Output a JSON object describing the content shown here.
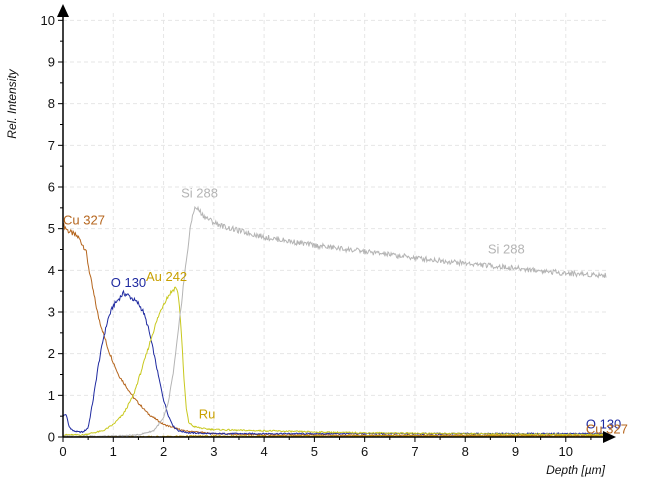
{
  "chart_data": {
    "type": "line",
    "xlabel": "Depth [µm]",
    "ylabel": "Rel. Intensity",
    "xlim": [
      0,
      10.8
    ],
    "ylim": [
      0,
      10.2
    ],
    "xticks": [
      0,
      1,
      2,
      3,
      4,
      5,
      6,
      7,
      8,
      9,
      10
    ],
    "yticks": [
      0,
      1,
      2,
      3,
      4,
      5,
      6,
      7,
      8,
      9,
      10
    ],
    "grid": true,
    "series": [
      {
        "name": "Cu 327",
        "color": "#b5651d",
        "x": [
          0,
          0.1,
          0.3,
          0.45,
          0.55,
          0.7,
          0.9,
          1.1,
          1.4,
          1.7,
          2.0,
          2.4,
          3.0,
          4.0,
          6.0,
          8.0,
          10.0,
          10.8
        ],
        "y": [
          5.1,
          4.95,
          4.8,
          4.5,
          3.8,
          2.9,
          2.1,
          1.5,
          0.95,
          0.55,
          0.3,
          0.15,
          0.08,
          0.05,
          0.04,
          0.04,
          0.04,
          0.04
        ]
      },
      {
        "name": "O 130",
        "color": "#1f2aa0",
        "x": [
          0,
          0.06,
          0.12,
          0.2,
          0.3,
          0.4,
          0.5,
          0.6,
          0.7,
          0.8,
          0.9,
          1.0,
          1.1,
          1.2,
          1.3,
          1.4,
          1.5,
          1.6,
          1.7,
          1.8,
          1.9,
          2.0,
          2.1,
          2.2,
          2.3,
          2.5,
          3.0,
          4.0,
          6.0,
          8.0,
          10.0,
          10.8
        ],
        "y": [
          0.5,
          0.55,
          0.25,
          0.15,
          0.12,
          0.12,
          0.22,
          0.9,
          1.7,
          2.35,
          2.85,
          3.15,
          3.3,
          3.45,
          3.4,
          3.3,
          3.2,
          3.0,
          2.6,
          2.05,
          1.45,
          0.9,
          0.5,
          0.25,
          0.15,
          0.1,
          0.08,
          0.08,
          0.08,
          0.08,
          0.08,
          0.08
        ]
      },
      {
        "name": "Au 242",
        "color": "#c8c81e",
        "x": [
          0,
          0.2,
          0.4,
          0.6,
          0.8,
          1.0,
          1.2,
          1.4,
          1.6,
          1.8,
          1.9,
          2.0,
          2.1,
          2.2,
          2.25,
          2.3,
          2.35,
          2.4,
          2.45,
          2.5,
          2.6,
          2.8,
          3.0,
          3.5,
          4.0,
          5.0,
          6.0,
          8.0,
          10.0,
          10.8
        ],
        "y": [
          0.05,
          0.05,
          0.05,
          0.1,
          0.15,
          0.3,
          0.55,
          1.0,
          1.75,
          2.55,
          2.9,
          3.2,
          3.4,
          3.55,
          3.6,
          3.35,
          2.6,
          1.5,
          0.7,
          0.35,
          0.25,
          0.2,
          0.18,
          0.16,
          0.15,
          0.12,
          0.1,
          0.08,
          0.06,
          0.06
        ]
      },
      {
        "name": "Si 288",
        "color": "#b4b4b4",
        "x": [
          0,
          1.0,
          1.5,
          1.8,
          2.0,
          2.1,
          2.2,
          2.3,
          2.4,
          2.5,
          2.55,
          2.6,
          2.65,
          2.7,
          2.8,
          3.0,
          3.2,
          3.5,
          4.0,
          5.0,
          6.0,
          7.0,
          8.0,
          9.0,
          10.0,
          10.8
        ],
        "y": [
          0.02,
          0.02,
          0.05,
          0.15,
          0.45,
          0.85,
          1.6,
          2.6,
          3.7,
          4.7,
          5.15,
          5.45,
          5.5,
          5.45,
          5.3,
          5.15,
          5.05,
          4.95,
          4.8,
          4.6,
          4.45,
          4.3,
          4.17,
          4.05,
          3.93,
          3.88
        ]
      },
      {
        "name": "Ru",
        "color": "#c8a000",
        "x": [
          0,
          1.0,
          2.0,
          2.5,
          3.0,
          4.0,
          6.0,
          8.0,
          10.0,
          10.8
        ],
        "y": [
          0.0,
          0.0,
          0.01,
          0.02,
          0.02,
          0.02,
          0.02,
          0.02,
          0.02,
          0.02
        ]
      }
    ],
    "labels": [
      {
        "text": "Cu 327",
        "x": 0.0,
        "y": 5.1,
        "color": "#b5651d"
      },
      {
        "text": "O 130",
        "x": 0.95,
        "y": 3.6,
        "color": "#1f2aa0"
      },
      {
        "text": "Au 242",
        "x": 1.65,
        "y": 3.75,
        "color": "#c8a000"
      },
      {
        "text": "Si 288",
        "x": 2.35,
        "y": 5.75,
        "color": "#b4b4b4"
      },
      {
        "text": "Si 288",
        "x": 8.45,
        "y": 4.4,
        "color": "#b4b4b4"
      },
      {
        "text": "Ru",
        "x": 2.7,
        "y": 0.45,
        "color": "#c8a000"
      },
      {
        "text": "O 130",
        "x": 10.4,
        "y": 0.2,
        "color": "#1f2aa0"
      },
      {
        "text": "Cu 327",
        "x": 10.4,
        "y": 0.08,
        "color": "#b5651d"
      }
    ]
  }
}
